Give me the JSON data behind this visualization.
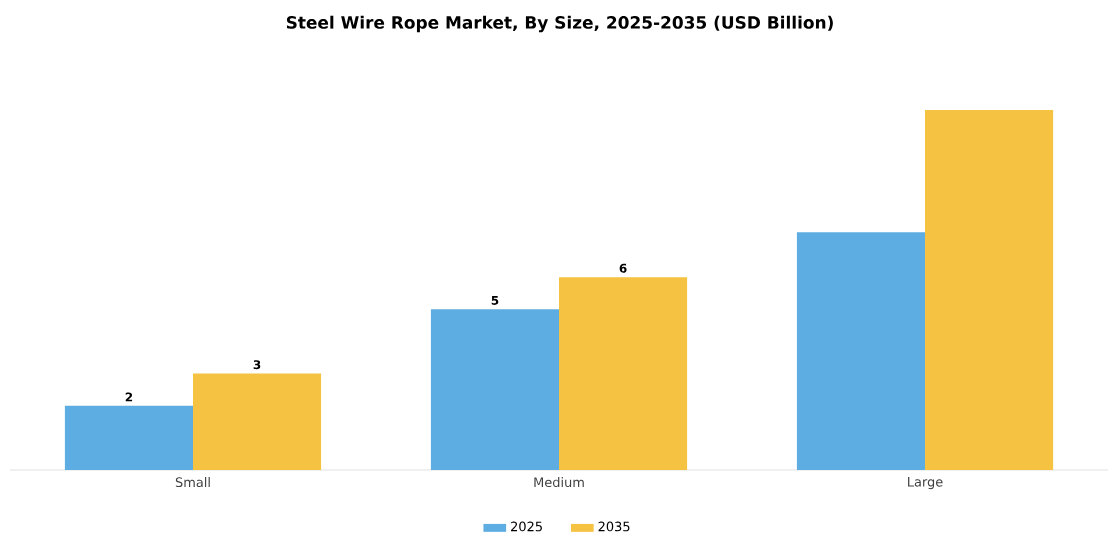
{
  "chart_data": {
    "type": "bar",
    "title": "Steel Wire Rope Market, By Size, 2025-2035 (USD Billion)",
    "categories": [
      "Small",
      "Medium",
      "Large"
    ],
    "legend": "bottom",
    "series": [
      {
        "name": "2025",
        "color": "#5dade2",
        "values": [
          2,
          5,
          7.4
        ],
        "value_labels": [
          "2",
          "5",
          null
        ]
      },
      {
        "name": "2035",
        "color": "#f5c242",
        "values": [
          3,
          6,
          11.2
        ],
        "value_labels": [
          "3",
          "6",
          null
        ]
      }
    ]
  }
}
